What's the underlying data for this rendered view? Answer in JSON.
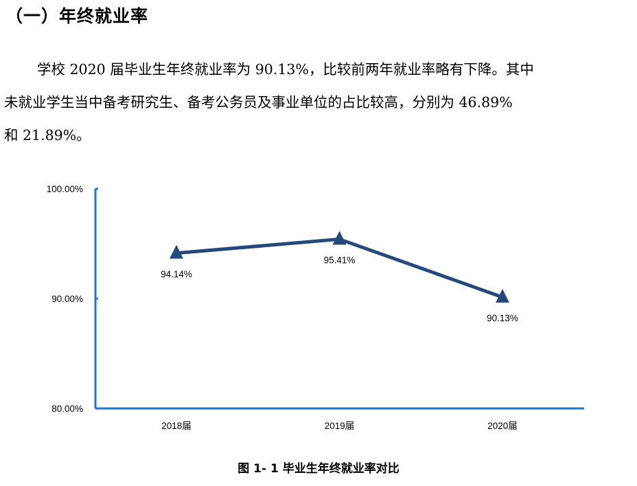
{
  "section": {
    "title": "（一）年终就业率"
  },
  "paragraph": {
    "lines": [
      "学校 2020 届毕业生年终就业率为 90.13%，比较前两年就业率略有下降。其中",
      "未就业学生当中备考研究生、备考公务员及事业单位的占比较高，分别为  46.89%",
      "和 21.89%。"
    ]
  },
  "chart_data": {
    "type": "line",
    "categories": [
      "2018届",
      "2019届",
      "2020届"
    ],
    "values": [
      94.14,
      95.41,
      90.13
    ],
    "data_labels": [
      "94.14%",
      "95.41%",
      "90.13%"
    ],
    "y_ticks": [
      "80.00%",
      "90.00%",
      "100.00%"
    ],
    "ylim": [
      80,
      100
    ],
    "title": "",
    "xlabel": "",
    "ylabel": "",
    "marker": "triangle",
    "grid": false,
    "legend": "none",
    "colors": {
      "line": "#25497a",
      "axis": "#1a75cf"
    }
  },
  "caption": {
    "text": "图 1- 1    毕业生年终就业率对比"
  }
}
